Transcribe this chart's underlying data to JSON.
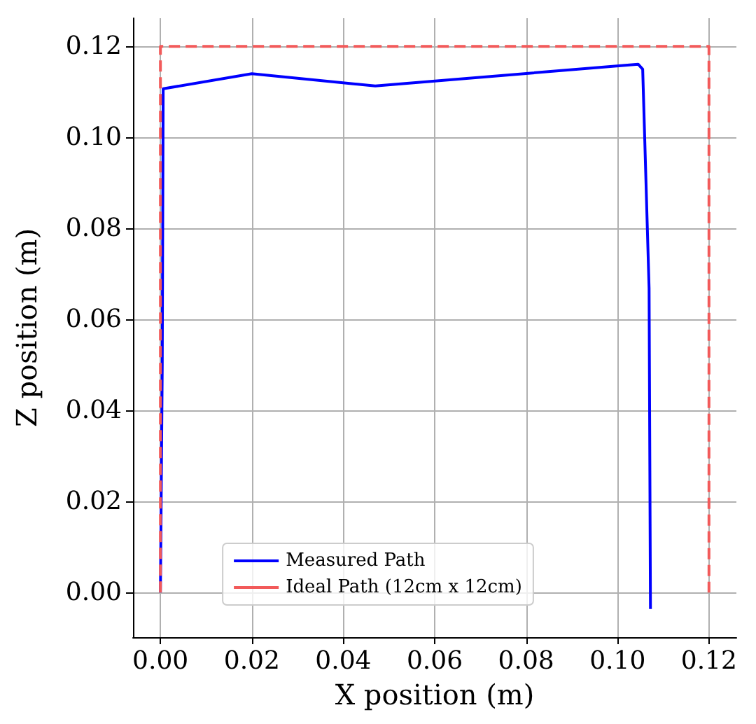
{
  "chart_data": {
    "type": "line",
    "xlabel": "X position (m)",
    "ylabel": "Z position (m)",
    "series": [
      {
        "name": "Measured Path",
        "color": "#0000ff",
        "line_style": "solid",
        "x": [
          0,
          0.0004,
          0.0006,
          0.02,
          0.047,
          0.1045,
          0.1055,
          0.1069,
          0.1072
        ],
        "values": [
          0,
          0.05,
          0.1107,
          0.114,
          0.1113,
          0.1161,
          0.115,
          0.0669,
          -0.0036
        ]
      },
      {
        "name": "Ideal Path (12cm x 12cm)",
        "color": "#f25a5a",
        "line_style": "dashed",
        "x": [
          0,
          0,
          0.12,
          0.12
        ],
        "values": [
          0,
          0.12,
          0.12,
          0
        ]
      }
    ],
    "xlim": [
      -0.006,
      0.126
    ],
    "ylim": [
      -0.0098,
      0.1262
    ],
    "xticks": [
      {
        "value": 0,
        "label": "0.00"
      },
      {
        "value": 0.02,
        "label": "0.02"
      },
      {
        "value": 0.04,
        "label": "0.04"
      },
      {
        "value": 0.06,
        "label": "0.06"
      },
      {
        "value": 0.08,
        "label": "0.08"
      },
      {
        "value": 0.1,
        "label": "0.10"
      },
      {
        "value": 0.12,
        "label": "0.12"
      }
    ],
    "yticks": [
      {
        "value": 0,
        "label": "0.00"
      },
      {
        "value": 0.02,
        "label": "0.02"
      },
      {
        "value": 0.04,
        "label": "0.04"
      },
      {
        "value": 0.06,
        "label": "0.06"
      },
      {
        "value": 0.08,
        "label": "0.08"
      },
      {
        "value": 0.1,
        "label": "0.10"
      },
      {
        "value": 0.12,
        "label": "0.12"
      }
    ],
    "grid": true,
    "legend": "bottom",
    "marker": "none"
  }
}
